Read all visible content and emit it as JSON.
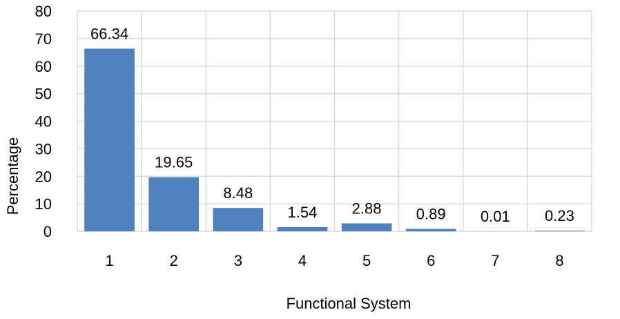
{
  "chart_data": {
    "type": "bar",
    "categories": [
      "1",
      "2",
      "3",
      "4",
      "5",
      "6",
      "7",
      "8"
    ],
    "values": [
      66.34,
      19.65,
      8.48,
      1.54,
      2.88,
      0.89,
      0.01,
      0.23
    ],
    "data_labels": [
      "66.34",
      "19.65",
      "8.48",
      "1.54",
      "2.88",
      "0.89",
      "0.01",
      "0.23"
    ],
    "title": "",
    "xlabel": "Functional System",
    "ylabel": "Percentage",
    "ylim": [
      0,
      80
    ],
    "y_ticks": [
      "0",
      "10",
      "20",
      "30",
      "40",
      "50",
      "60",
      "70",
      "80"
    ],
    "grid": true,
    "legend": "none",
    "colors": {
      "bar": "#4f81bd",
      "grid": "#d9d9d9",
      "text": "#000000"
    }
  }
}
